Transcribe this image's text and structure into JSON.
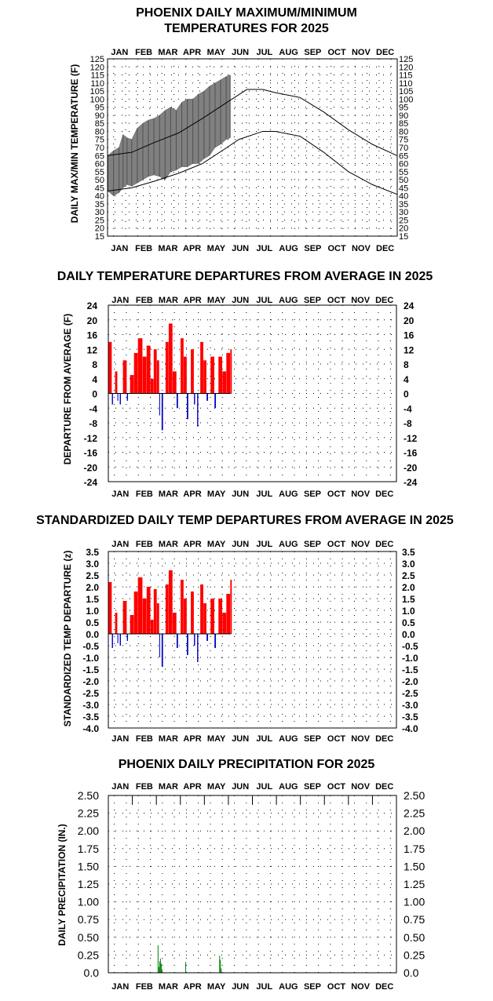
{
  "months": [
    "JAN",
    "FEB",
    "MAR",
    "APR",
    "MAY",
    "JUN",
    "JUL",
    "AUG",
    "SEP",
    "OCT",
    "NOV",
    "DEC"
  ],
  "chart_data": [
    {
      "type": "line",
      "title_lines": [
        "PHOENIX DAILY MAXIMUM/MINIMUM",
        "TEMPERATURES FOR 2025"
      ],
      "ylabel": "DAILY MAX/MIN TEMPERATURE (F)",
      "ylim": [
        15,
        125
      ],
      "yticks": [
        "15",
        "20",
        "25",
        "30",
        "35",
        "40",
        "45",
        "50",
        "55",
        "60",
        "65",
        "70",
        "75",
        "80",
        "85",
        "90",
        "95",
        "100",
        "105",
        "110",
        "115",
        "120",
        "125"
      ],
      "grid": "dotted",
      "normal_max_monthly": [
        {
          "day": 1,
          "value": 65
        },
        {
          "day": 31,
          "value": 67
        },
        {
          "day": 59,
          "value": 73
        },
        {
          "day": 90,
          "value": 79
        },
        {
          "day": 120,
          "value": 88
        },
        {
          "day": 151,
          "value": 98
        },
        {
          "day": 176,
          "value": 106
        },
        {
          "day": 196,
          "value": 106
        },
        {
          "day": 212,
          "value": 104
        },
        {
          "day": 243,
          "value": 101
        },
        {
          "day": 273,
          "value": 92
        },
        {
          "day": 304,
          "value": 81
        },
        {
          "day": 334,
          "value": 72
        },
        {
          "day": 365,
          "value": 65
        }
      ],
      "normal_min_monthly": [
        {
          "day": 1,
          "value": 43
        },
        {
          "day": 31,
          "value": 45
        },
        {
          "day": 59,
          "value": 49
        },
        {
          "day": 90,
          "value": 54
        },
        {
          "day": 120,
          "value": 60
        },
        {
          "day": 151,
          "value": 70
        },
        {
          "day": 166,
          "value": 75
        },
        {
          "day": 196,
          "value": 80
        },
        {
          "day": 212,
          "value": 80
        },
        {
          "day": 243,
          "value": 77
        },
        {
          "day": 273,
          "value": 67
        },
        {
          "day": 304,
          "value": 55
        },
        {
          "day": 334,
          "value": 47
        },
        {
          "day": 365,
          "value": 41
        }
      ],
      "observed_range_2025": [
        {
          "day": 1,
          "min": 43,
          "max": 65
        },
        {
          "day": 8,
          "min": 40,
          "max": 68
        },
        {
          "day": 15,
          "min": 42,
          "max": 70
        },
        {
          "day": 20,
          "min": 45,
          "max": 78
        },
        {
          "day": 25,
          "min": 47,
          "max": 76
        },
        {
          "day": 31,
          "min": 46,
          "max": 75
        },
        {
          "day": 38,
          "min": 48,
          "max": 82
        },
        {
          "day": 45,
          "min": 50,
          "max": 85
        },
        {
          "day": 52,
          "min": 52,
          "max": 87
        },
        {
          "day": 59,
          "min": 53,
          "max": 88
        },
        {
          "day": 66,
          "min": 52,
          "max": 90
        },
        {
          "day": 73,
          "min": 50,
          "max": 93
        },
        {
          "day": 80,
          "min": 55,
          "max": 95
        },
        {
          "day": 87,
          "min": 56,
          "max": 93
        },
        {
          "day": 94,
          "min": 58,
          "max": 98
        },
        {
          "day": 101,
          "min": 58,
          "max": 100
        },
        {
          "day": 108,
          "min": 60,
          "max": 100
        },
        {
          "day": 115,
          "min": 60,
          "max": 103
        },
        {
          "day": 122,
          "min": 63,
          "max": 105
        },
        {
          "day": 129,
          "min": 65,
          "max": 108
        },
        {
          "day": 136,
          "min": 70,
          "max": 110
        },
        {
          "day": 143,
          "min": 72,
          "max": 112
        },
        {
          "day": 150,
          "min": 75,
          "max": 114
        },
        {
          "day": 155,
          "min": 76,
          "max": 115
        }
      ]
    },
    {
      "type": "bar",
      "title": "DAILY TEMPERATURE DEPARTURES FROM AVERAGE IN 2025",
      "ylabel": "DEPARTURE FROM AVERAGE (F)",
      "ylim": [
        -24,
        24
      ],
      "yticks": [
        "24",
        "20",
        "16",
        "12",
        "8",
        "4",
        "0",
        "-4",
        "-8",
        "-12",
        "-16",
        "-20",
        "-24"
      ],
      "grid": "dotted",
      "positive_color": "#ff0000",
      "negative_color": "#0000c0",
      "departures_by_week": [
        {
          "day": 1,
          "value": 14
        },
        {
          "day": 5,
          "value": -3
        },
        {
          "day": 9,
          "value": 6
        },
        {
          "day": 12,
          "value": -2
        },
        {
          "day": 15,
          "value": -3
        },
        {
          "day": 19,
          "value": 9
        },
        {
          "day": 24,
          "value": -2
        },
        {
          "day": 28,
          "value": 5
        },
        {
          "day": 33,
          "value": 11
        },
        {
          "day": 38,
          "value": 15
        },
        {
          "day": 44,
          "value": 10
        },
        {
          "day": 49,
          "value": 13
        },
        {
          "day": 54,
          "value": 4
        },
        {
          "day": 58,
          "value": 12
        },
        {
          "day": 62,
          "value": 9
        },
        {
          "day": 65,
          "value": -6
        },
        {
          "day": 68,
          "value": -10
        },
        {
          "day": 73,
          "value": 14
        },
        {
          "day": 77,
          "value": 19
        },
        {
          "day": 82,
          "value": 6
        },
        {
          "day": 87,
          "value": -4
        },
        {
          "day": 92,
          "value": 15
        },
        {
          "day": 96,
          "value": 10
        },
        {
          "day": 100,
          "value": -7
        },
        {
          "day": 105,
          "value": 12
        },
        {
          "day": 109,
          "value": -3
        },
        {
          "day": 113,
          "value": -9
        },
        {
          "day": 117,
          "value": 14
        },
        {
          "day": 121,
          "value": 9
        },
        {
          "day": 125,
          "value": -2
        },
        {
          "day": 130,
          "value": 10
        },
        {
          "day": 135,
          "value": -4
        },
        {
          "day": 140,
          "value": 10
        },
        {
          "day": 145,
          "value": 6
        },
        {
          "day": 150,
          "value": 11
        },
        {
          "day": 155,
          "value": 12
        }
      ]
    },
    {
      "type": "bar",
      "title": "STANDARDIZED DAILY TEMP DEPARTURES FROM AVERAGE IN 2025",
      "ylabel": "STANDARDIZED TEMP DEPARTURE (z)",
      "ylim": [
        -4.0,
        3.5
      ],
      "yticks": [
        "3.5",
        "3.0",
        "2.5",
        "2.0",
        "1.5",
        "1.0",
        "0.5",
        "0.0",
        "-0.5",
        "-1.0",
        "-1.5",
        "-2.0",
        "-2.5",
        "-3.0",
        "-3.5",
        "-4.0"
      ],
      "grid": "dotted",
      "positive_color": "#ff0000",
      "negative_color": "#0000c0",
      "departures_by_week": [
        {
          "day": 1,
          "value": 2.2
        },
        {
          "day": 5,
          "value": -0.6
        },
        {
          "day": 9,
          "value": 0.9
        },
        {
          "day": 12,
          "value": -0.4
        },
        {
          "day": 15,
          "value": -0.5
        },
        {
          "day": 19,
          "value": 1.4
        },
        {
          "day": 24,
          "value": -0.3
        },
        {
          "day": 28,
          "value": 0.8
        },
        {
          "day": 33,
          "value": 1.8
        },
        {
          "day": 38,
          "value": 2.4
        },
        {
          "day": 44,
          "value": 1.5
        },
        {
          "day": 49,
          "value": 2.0
        },
        {
          "day": 54,
          "value": 0.6
        },
        {
          "day": 58,
          "value": 1.9
        },
        {
          "day": 62,
          "value": 1.3
        },
        {
          "day": 65,
          "value": -1.0
        },
        {
          "day": 68,
          "value": -1.4
        },
        {
          "day": 73,
          "value": 2.1
        },
        {
          "day": 77,
          "value": 2.7
        },
        {
          "day": 82,
          "value": 0.9
        },
        {
          "day": 87,
          "value": -0.6
        },
        {
          "day": 92,
          "value": 2.3
        },
        {
          "day": 96,
          "value": 1.5
        },
        {
          "day": 100,
          "value": -0.9
        },
        {
          "day": 105,
          "value": 1.8
        },
        {
          "day": 109,
          "value": -0.5
        },
        {
          "day": 113,
          "value": -1.2
        },
        {
          "day": 117,
          "value": 2.1
        },
        {
          "day": 121,
          "value": 1.3
        },
        {
          "day": 125,
          "value": -0.3
        },
        {
          "day": 130,
          "value": 1.5
        },
        {
          "day": 135,
          "value": -0.6
        },
        {
          "day": 140,
          "value": 1.5
        },
        {
          "day": 145,
          "value": 0.9
        },
        {
          "day": 150,
          "value": 1.7
        },
        {
          "day": 155,
          "value": 2.3
        }
      ]
    },
    {
      "type": "bar",
      "title": "PHOENIX DAILY PRECIPITATION FOR 2025",
      "ylabel": "DAILY PRECIPITATION (IN.)",
      "ylim": [
        0,
        2.5
      ],
      "yticks": [
        "2.50",
        "2.25",
        "2.00",
        "1.75",
        "1.50",
        "1.25",
        "1.00",
        "0.75",
        "0.50",
        "0.25",
        "0.0"
      ],
      "grid": "dotted",
      "bar_color": "#008000",
      "precip_days": [
        {
          "day": 23,
          "value": 0.01
        },
        {
          "day": 63,
          "value": 0.39
        },
        {
          "day": 64,
          "value": 0.08
        },
        {
          "day": 65,
          "value": 0.16
        },
        {
          "day": 66,
          "value": 0.2
        },
        {
          "day": 67,
          "value": 0.13
        },
        {
          "day": 68,
          "value": 0.05
        },
        {
          "day": 98,
          "value": 0.15
        },
        {
          "day": 119,
          "value": 0.01
        },
        {
          "day": 141,
          "value": 0.24
        },
        {
          "day": 142,
          "value": 0.18
        },
        {
          "day": 143,
          "value": 0.06
        }
      ]
    }
  ]
}
